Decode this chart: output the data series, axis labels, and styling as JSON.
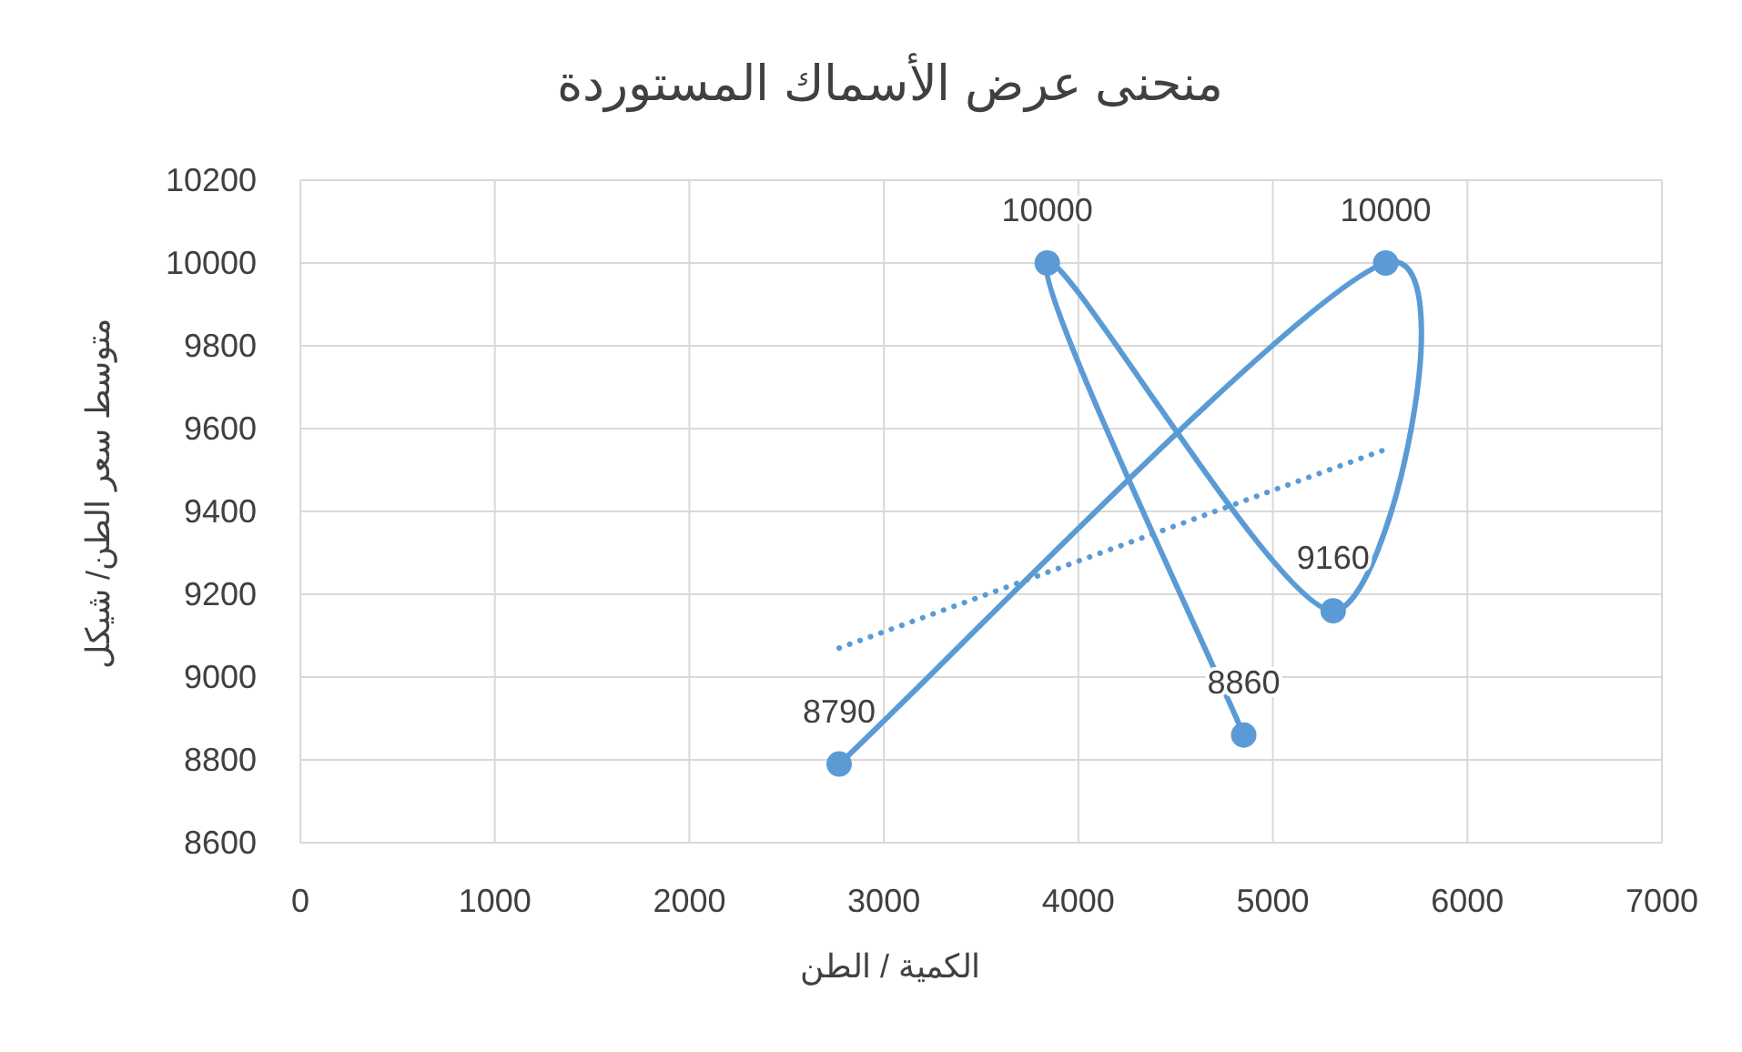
{
  "chart_data": {
    "type": "line",
    "title": "منحنى عرض الأسماك المستوردة",
    "xlabel": "الكمية / الطن",
    "ylabel": "متوسط سعر الطن/ شيكل",
    "series": [
      {
        "color": "#5b9bd5",
        "x": [
          2770,
          5580,
          5310,
          3840,
          4850
        ],
        "values": [
          8790,
          10000,
          9160,
          10000,
          8860
        ],
        "value_labels": [
          "8790",
          "10000",
          "9160",
          "10000",
          "8860"
        ],
        "marker": "circle",
        "line_style": "solid"
      },
      {
        "color": "#5b9bd5",
        "x": [
          2770,
          5580
        ],
        "values": [
          9070,
          9550
        ],
        "marker": "none",
        "line_style": "dotted"
      }
    ],
    "xlim": [
      0,
      7000
    ],
    "xticks": [
      0,
      1000,
      2000,
      3000,
      4000,
      5000,
      6000,
      7000
    ],
    "ylim": [
      8600,
      10200
    ],
    "yticks": [
      8600,
      8800,
      9000,
      9200,
      9400,
      9600,
      9800,
      10000,
      10200
    ],
    "grid": true
  }
}
